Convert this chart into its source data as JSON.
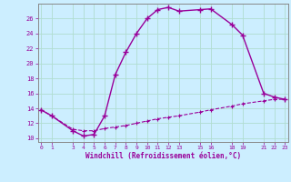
{
  "xlabel": "Windchill (Refroidissement éolien,°C)",
  "background_color": "#cceeff",
  "line_color": "#990099",
  "line1_x": [
    0,
    1,
    3,
    4,
    5,
    6,
    7,
    8,
    9,
    10,
    11,
    12,
    13,
    15,
    16,
    18,
    19,
    21,
    22,
    23
  ],
  "line1_y": [
    13.8,
    13.0,
    11.0,
    10.3,
    10.5,
    13.0,
    18.5,
    21.5,
    24.0,
    26.0,
    27.2,
    27.5,
    27.0,
    27.2,
    27.3,
    25.2,
    23.8,
    16.0,
    15.5,
    15.2
  ],
  "line2_x": [
    0,
    1,
    3,
    4,
    5,
    6,
    7,
    8,
    9,
    10,
    11,
    12,
    13,
    15,
    16,
    18,
    19,
    21,
    22,
    23
  ],
  "line2_y": [
    13.8,
    13.0,
    11.2,
    11.0,
    11.0,
    11.3,
    11.5,
    11.7,
    12.0,
    12.3,
    12.6,
    12.8,
    13.0,
    13.5,
    13.8,
    14.3,
    14.6,
    15.0,
    15.2,
    15.2
  ],
  "xlim": [
    -0.3,
    23.3
  ],
  "ylim": [
    9.5,
    28.0
  ],
  "xticks": [
    0,
    1,
    3,
    4,
    5,
    6,
    7,
    8,
    9,
    10,
    11,
    12,
    13,
    15,
    16,
    18,
    19,
    21,
    22,
    23
  ],
  "xtick_labels": [
    "0",
    "1",
    "3",
    "4",
    "5",
    "6",
    "7",
    "8",
    "9",
    "10",
    "11",
    "12",
    "13",
    "15",
    "16",
    "18",
    "19",
    "21",
    "22",
    "23"
  ],
  "yticks": [
    10,
    12,
    14,
    16,
    18,
    20,
    22,
    24,
    26
  ],
  "grid_color": "#b0ddd0",
  "spine_color": "#888888",
  "tick_color": "#990099",
  "label_color": "#990099"
}
